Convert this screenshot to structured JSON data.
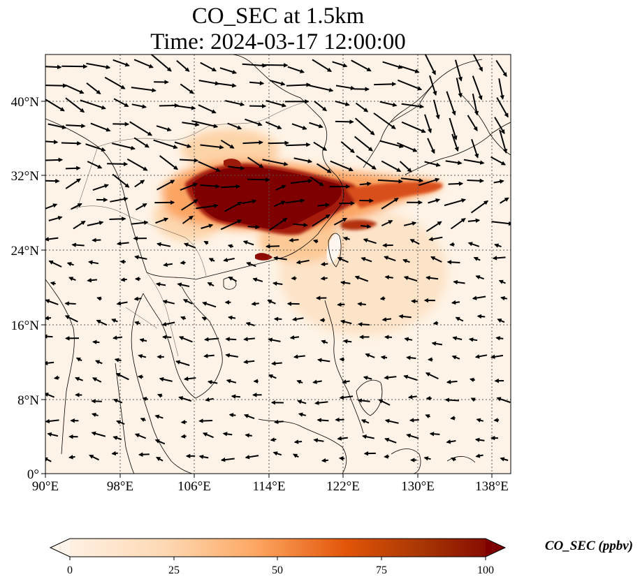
{
  "title": {
    "line1": "CO_SEC at 1.5km",
    "line2": "Time: 2024-03-17 12:00:00"
  },
  "map": {
    "lon_range": [
      90,
      140
    ],
    "lat_range": [
      0,
      45
    ],
    "lon_ticks": [
      "90°E",
      "98°E",
      "106°E",
      "114°E",
      "122°E",
      "130°E",
      "138°E"
    ],
    "lat_ticks": [
      "0°",
      "8°N",
      "16°N",
      "24°N",
      "32°N",
      "40°N"
    ],
    "gridlines": true,
    "field": "CO_SEC",
    "vectors": "wind arrows"
  },
  "colorbar": {
    "label": "CO_SEC (ppbv)",
    "ticks": [
      "0",
      "25",
      "50",
      "75",
      "100"
    ],
    "range": [
      0,
      100
    ],
    "extend": "both",
    "colormap": [
      "#fff5eb",
      "#fdd9b4",
      "#fda762",
      "#e25508",
      "#a63603",
      "#7f0000"
    ]
  }
}
